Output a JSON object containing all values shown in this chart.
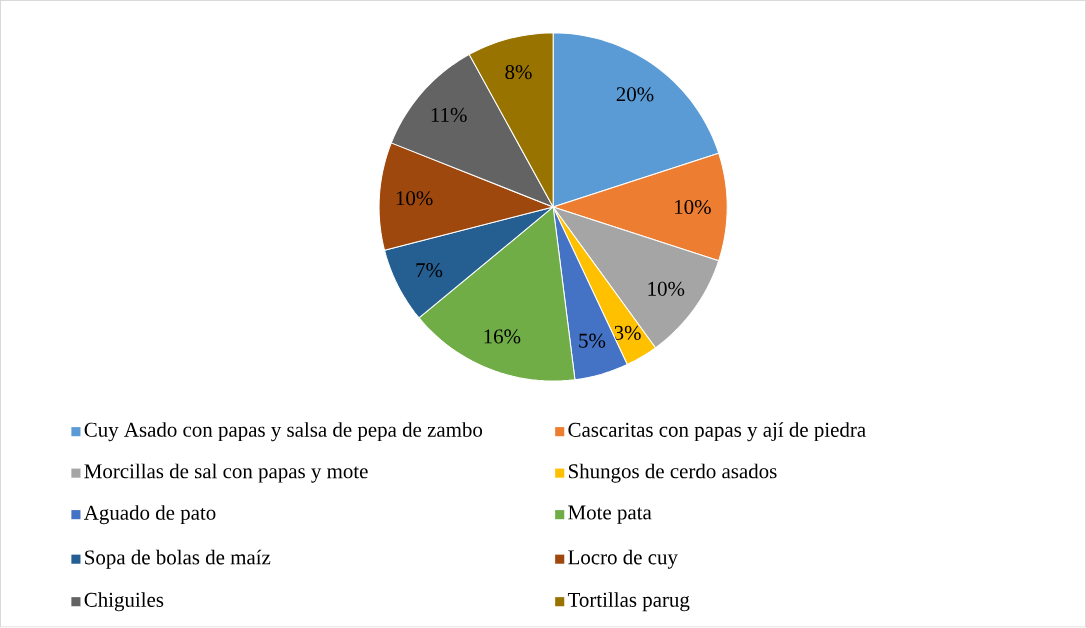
{
  "chart_data": {
    "type": "pie",
    "categories": [
      "Cuy Asado con papas y salsa de pepa de zambo",
      "Cascaritas con papas y ají de piedra",
      "Morcillas de sal con papas y mote",
      "Shungos de cerdo asados",
      "Aguado de pato",
      "Mote pata",
      "Sopa de bolas de maíz",
      "Locro de cuy",
      "Chiguiles",
      "Tortillas parug"
    ],
    "values": [
      20,
      10,
      10,
      3,
      5,
      16,
      7,
      10,
      11,
      8
    ],
    "value_labels": [
      "20%",
      "10%",
      "10%",
      "3%",
      "5%",
      "16%",
      "7%",
      "10%",
      "11%",
      "8%"
    ],
    "colors": [
      "#5b9bd5",
      "#ed7d31",
      "#a5a5a5",
      "#ffc000",
      "#4472c4",
      "#70ad47",
      "#255e91",
      "#9e480e",
      "#636363",
      "#997300"
    ],
    "legend": "bottom"
  }
}
